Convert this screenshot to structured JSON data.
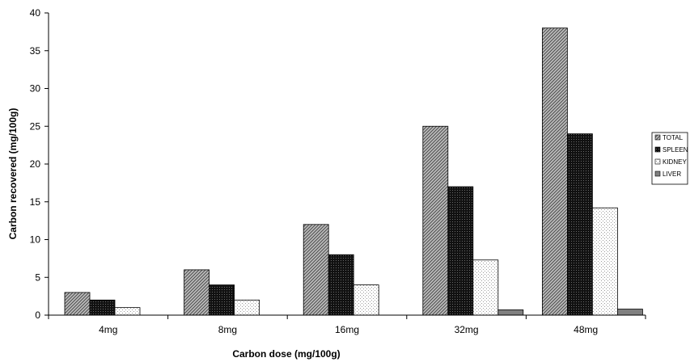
{
  "chart_data": {
    "type": "bar",
    "title": "",
    "xlabel": "Carbon dose (mg/100g)",
    "ylabel": "Carbon recovered (mg/100g)",
    "categories": [
      "4mg",
      "8mg",
      "16mg",
      "32mg",
      "48mg"
    ],
    "ylim": [
      0,
      40
    ],
    "yticks": [
      0,
      5,
      10,
      15,
      20,
      25,
      30,
      35,
      40
    ],
    "grid": false,
    "legend_position": "right",
    "series": [
      {
        "name": "TOTAL",
        "values": [
          3,
          6,
          12,
          25,
          38
        ],
        "pattern": "hatch-diagonal",
        "color": "#8c8c8c"
      },
      {
        "name": "SPLEEN",
        "values": [
          2,
          4,
          8,
          17,
          24
        ],
        "pattern": "dark-crosshatch",
        "color": "#1a1a1a"
      },
      {
        "name": "KIDNEY",
        "values": [
          1,
          2,
          4,
          7.3,
          14.2
        ],
        "pattern": "dots-light",
        "color": "#f2f2f2"
      },
      {
        "name": "LIVER",
        "values": [
          null,
          null,
          null,
          0.7,
          0.8
        ],
        "pattern": "solid-gray",
        "color": "#7f7f7f"
      }
    ]
  }
}
